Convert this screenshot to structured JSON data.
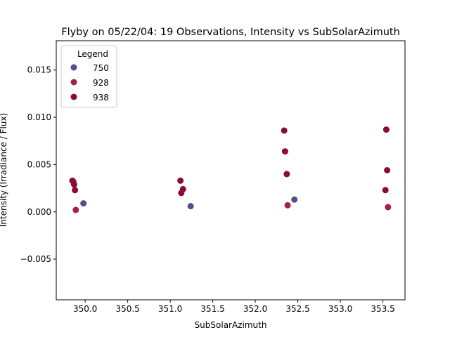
{
  "colors": {
    "750": "#584b8f",
    "928": "#a3233f",
    "938": "#8a0b38"
  },
  "chart_data": {
    "type": "scatter",
    "title": "Flyby on 05/22/04: 19 Observations, Intensity vs SubSolarAzimuth",
    "xlabel": "SubSolarAzimuth",
    "ylabel": "Intensity (Irradiance / Flux)",
    "xlim": [
      349.66,
      353.76
    ],
    "ylim": [
      -0.0093,
      0.0181
    ],
    "xticks": [
      350.0,
      350.5,
      351.0,
      351.5,
      352.0,
      352.5,
      353.0,
      353.5
    ],
    "xtick_labels": [
      "350.0",
      "350.5",
      "351.0",
      "351.5",
      "352.0",
      "352.5",
      "353.0",
      "353.5"
    ],
    "yticks": [
      -0.005,
      0.0,
      0.005,
      0.01,
      0.015
    ],
    "ytick_labels": [
      "−0.005",
      "0.000",
      "0.005",
      "0.010",
      "0.015"
    ],
    "grid": false,
    "legend": {
      "title": "Legend",
      "position": "top-left"
    },
    "series": [
      {
        "name": "750",
        "x": [
          349.98,
          351.24,
          352.46
        ],
        "y": [
          0.0009,
          0.0006,
          0.0013
        ]
      },
      {
        "name": "928",
        "x": [
          349.89,
          352.38,
          353.56
        ],
        "y": [
          0.0002,
          0.0007,
          0.0005
        ]
      },
      {
        "name": "938",
        "x": [
          349.85,
          349.86,
          349.87,
          349.88,
          351.12,
          351.13,
          351.15,
          352.34,
          352.35,
          352.37,
          353.53,
          353.54,
          353.55
        ],
        "y": [
          0.0033,
          0.0032,
          0.0029,
          0.0023,
          0.0033,
          0.002,
          0.0024,
          0.0086,
          0.0064,
          0.004,
          0.0023,
          0.0087,
          0.0044
        ]
      }
    ]
  }
}
